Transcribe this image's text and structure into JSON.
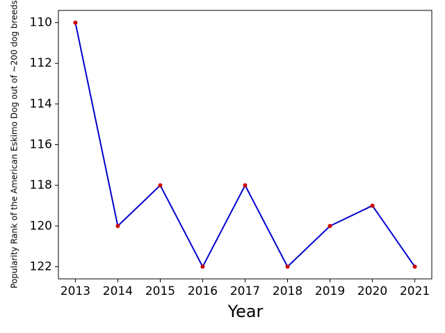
{
  "chart_data": {
    "type": "line",
    "x": [
      2013,
      2014,
      2015,
      2016,
      2017,
      2018,
      2019,
      2020,
      2021
    ],
    "series": [
      {
        "color": "#0000cc",
        "marker_color": "#cc0000",
        "values": [
          110,
          120,
          118,
          122,
          118,
          122,
          120,
          119,
          122
        ]
      }
    ],
    "xlabel": "Year",
    "ylabel": "Popularity Rank of the American Eskimo Dog out of ~200 dog breeds",
    "xlim": [
      2012.6,
      2021.4
    ],
    "xticks": [
      2013,
      2014,
      2015,
      2016,
      2017,
      2018,
      2019,
      2020,
      2021
    ],
    "ylim": [
      122.6,
      109.4
    ],
    "yticks": [
      110,
      112,
      114,
      116,
      118,
      120,
      122
    ],
    "grid": false
  }
}
